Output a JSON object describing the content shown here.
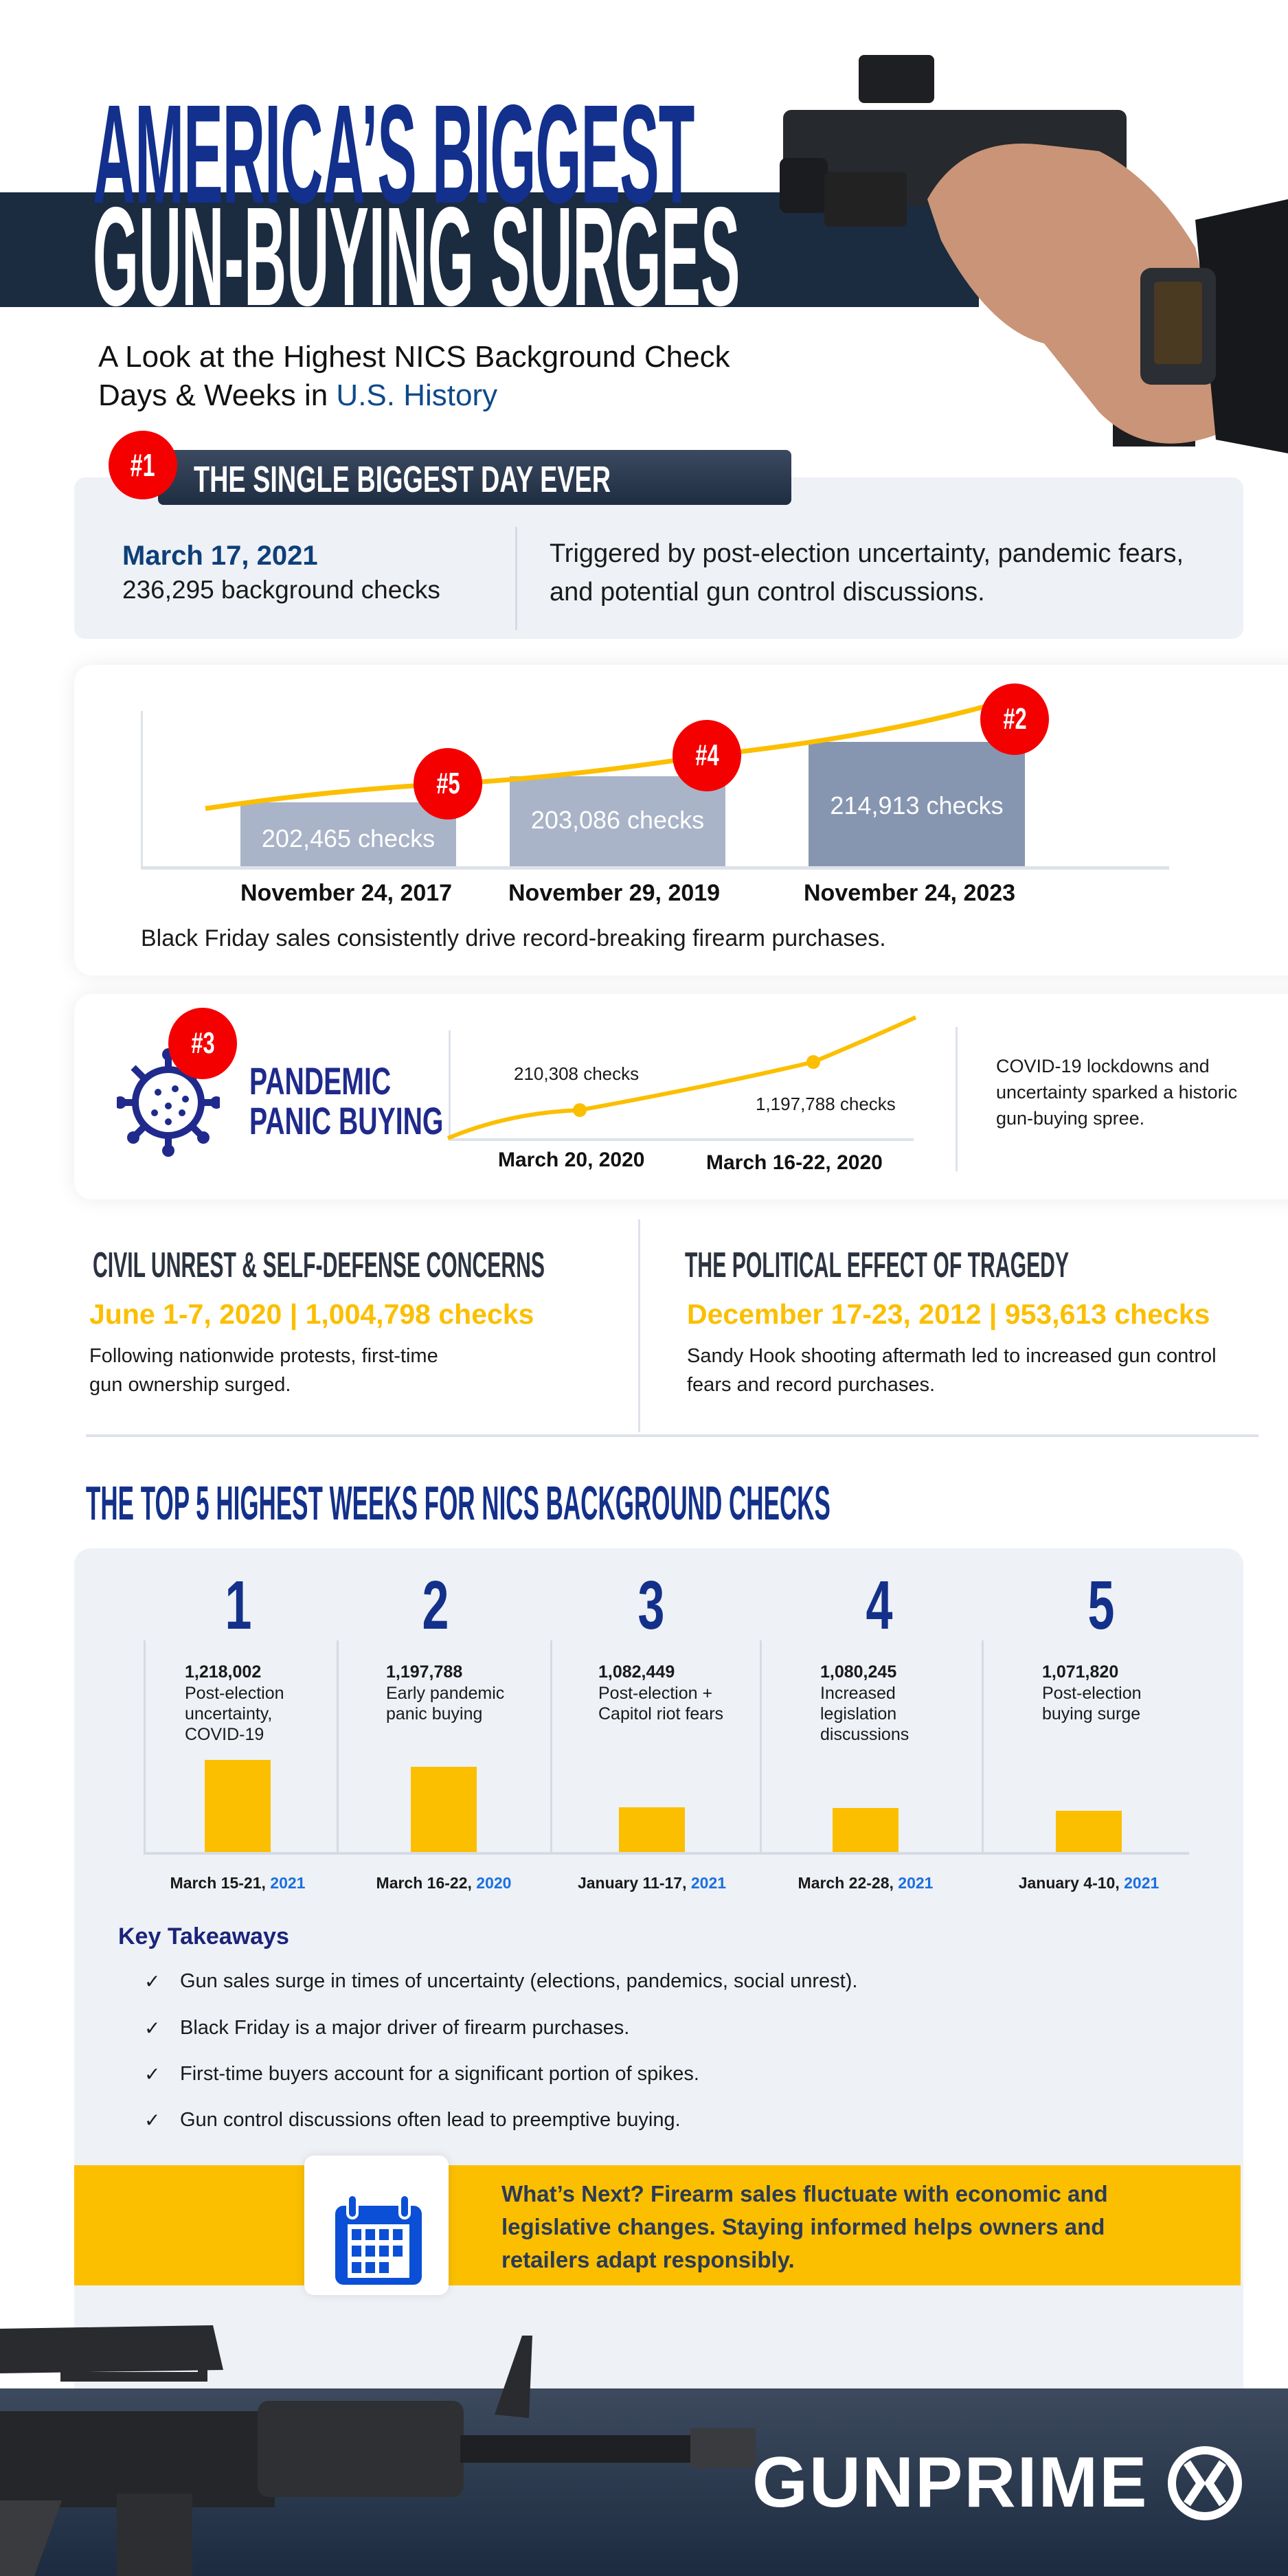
{
  "header": {
    "title_line1": "AMERICA’S BIGGEST",
    "title_line2": "GUN-BUYING SURGES",
    "subtitle_line1": "A Look at the Highest NICS Background Check",
    "subtitle_line2_prefix": "Days & Weeks in ",
    "subtitle_line2_highlight": "U.S. History"
  },
  "biggest_day": {
    "badge": "#1",
    "heading": "THE SINGLE BIGGEST DAY EVER",
    "date": "March 17, 2021",
    "checks": "236,295 background checks",
    "description": "Triggered by post-election uncertainty, pandemic fears, and potential gun control discussions."
  },
  "black_friday": {
    "bars": [
      {
        "badge": "#5",
        "label": "202,465  checks",
        "date": "November 24, 2017",
        "value": 202465
      },
      {
        "badge": "#4",
        "label": "203,086 checks",
        "date": "November 29, 2019",
        "value": 203086
      },
      {
        "badge": "#2",
        "label": "214,913 checks",
        "date": "November 24, 2023",
        "value": 214913
      }
    ],
    "caption": "Black Friday sales consistently drive record-breaking firearm purchases."
  },
  "pandemic": {
    "badge": "#3",
    "title_line1": "PANDEMIC",
    "title_line2": "PANIC BUYING",
    "point1_label": "210,308 checks",
    "point1_date": "March 20, 2020",
    "point2_label": "1,197,788 checks",
    "point2_date": "March 16-22, 2020",
    "description": "COVID-19 lockdowns and uncertainty sparked a historic gun-buying spree."
  },
  "civil_unrest": {
    "heading": "CIVIL UNREST & SELF-DEFENSE CONCERNS",
    "stat": "June 1-7, 2020 | 1,004,798 checks",
    "description": "Following nationwide protests, first-time gun ownership surged."
  },
  "tragedy": {
    "heading": "THE POLITICAL EFFECT OF TRAGEDY",
    "stat": "December 17-23, 2012 | 953,613 checks",
    "description": "Sandy Hook shooting aftermath led to increased gun control fears and record purchases."
  },
  "top5": {
    "title": "THE TOP 5 HIGHEST WEEKS FOR NICS BACKGROUND CHECKS",
    "weeks": [
      {
        "rank": "1",
        "value": "1,218,002",
        "checks": 1218002,
        "desc": "Post-election uncertainty, COVID-19",
        "date": "March 15-21, ",
        "year": "2021"
      },
      {
        "rank": "2",
        "value": "1,197,788",
        "checks": 1197788,
        "desc": "Early pandemic panic buying",
        "date": "March 16-22, ",
        "year": "2020"
      },
      {
        "rank": "3",
        "value": "1,082,449",
        "checks": 1082449,
        "desc": "Post-election + Capitol riot fears",
        "date": "January 11-17, ",
        "year": "2021"
      },
      {
        "rank": "4",
        "value": "1,080,245",
        "checks": 1080245,
        "desc": "Increased legislation discussions",
        "date": "March 22-28, ",
        "year": "2021"
      },
      {
        "rank": "5",
        "value": "1,071,820",
        "checks": 1071820,
        "desc": "Post-election buying surge",
        "date": "January 4-10, ",
        "year": "2021"
      }
    ]
  },
  "takeaways": {
    "title": "Key Takeaways",
    "check_icon": "✓",
    "items": [
      "Gun sales surge in times of uncertainty (elections, pandemics, social unrest).",
      "Black Friday is a major driver of firearm purchases.",
      "First-time buyers account for a significant portion of spikes.",
      "Gun control discussions often lead to preemptive buying."
    ]
  },
  "whats_next": {
    "icon": "calendar-icon",
    "text": "What’s Next? Firearm sales fluctuate with economic and legislative changes. Staying informed helps owners and retailers adapt responsibly."
  },
  "footer": {
    "brand": "GUNPRIME"
  },
  "colors": {
    "navy": "#13308a",
    "red": "#f40000",
    "yellow": "#fbbf00",
    "dark": "#1b2b40",
    "blue": "#1a6fe0"
  }
}
